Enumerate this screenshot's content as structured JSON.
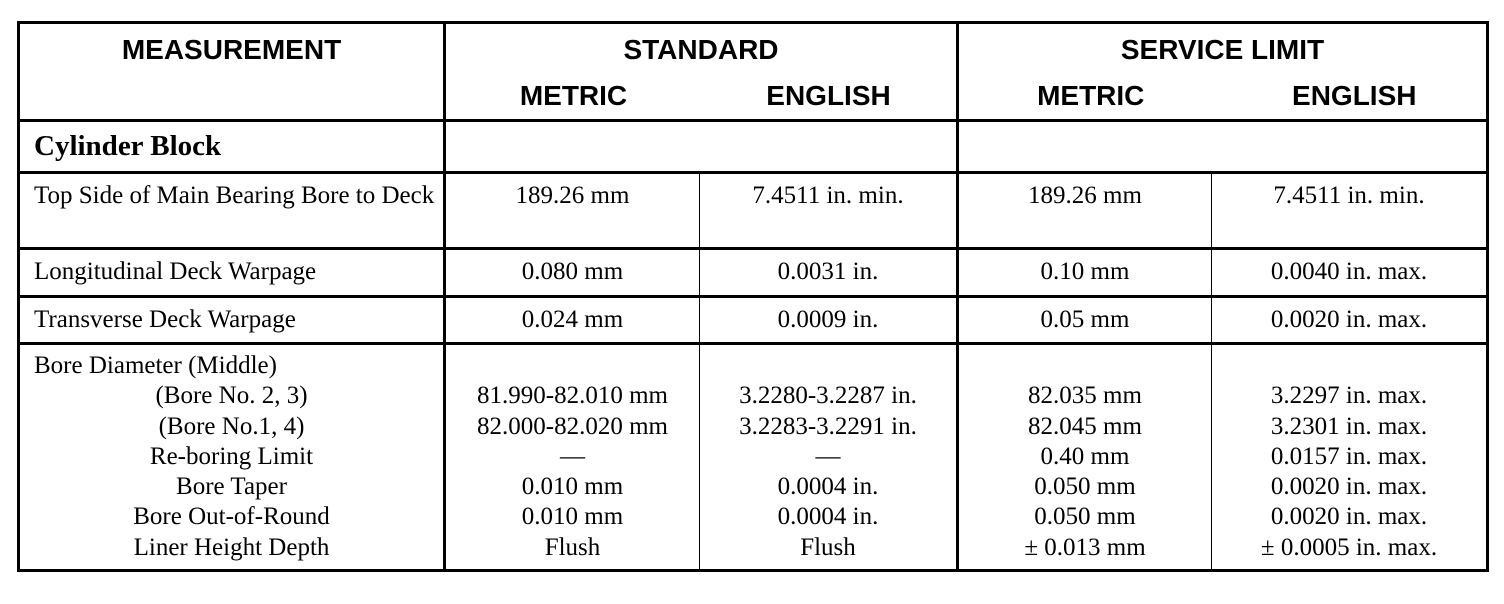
{
  "header": {
    "measurement": "MEASUREMENT",
    "standard": "STANDARD",
    "service_limit": "SERVICE LIMIT",
    "metric": "METRIC",
    "english": "ENGLISH"
  },
  "section": "Cylinder Block",
  "rows": [
    {
      "label": "Top Side of Main Bearing Bore to Deck",
      "std_metric": "189.26 mm",
      "std_english": "7.4511 in. min.",
      "svc_metric": "189.26 mm",
      "svc_english": "7.4511 in. min."
    },
    {
      "label": "Longitudinal Deck Warpage",
      "std_metric": "0.080 mm",
      "std_english": "0.0031 in.",
      "svc_metric": "0.10 mm",
      "svc_english": "0.0040 in. max."
    },
    {
      "label": "Transverse Deck Warpage",
      "std_metric": "0.024 mm",
      "std_english": "0.0009 in.",
      "svc_metric": "0.05 mm",
      "svc_english": "0.0020 in. max."
    }
  ],
  "bore": {
    "title": "Bore Diameter (Middle)",
    "items": [
      {
        "label": "(Bore No. 2, 3)",
        "std_metric": "81.990-82.010 mm",
        "std_english": "3.2280-3.2287 in.",
        "svc_metric": "82.035 mm",
        "svc_english": "3.2297 in. max."
      },
      {
        "label": "(Bore No.1,  4)",
        "std_metric": "82.000-82.020 mm",
        "std_english": "3.2283-3.2291 in.",
        "svc_metric": "82.045 mm",
        "svc_english": "3.2301 in. max."
      },
      {
        "label": "Re-boring Limit",
        "std_metric": "—",
        "std_english": "—",
        "svc_metric": "0.40 mm",
        "svc_english": "0.0157 in. max."
      },
      {
        "label": "Bore Taper",
        "std_metric": "0.010 mm",
        "std_english": "0.0004 in.",
        "svc_metric": "0.050 mm",
        "svc_english": "0.0020 in. max."
      },
      {
        "label": "Bore Out-of-Round",
        "std_metric": "0.010 mm",
        "std_english": "0.0004 in.",
        "svc_metric": "0.050 mm",
        "svc_english": "0.0020 in. max."
      },
      {
        "label": "Liner Height Depth",
        "std_metric": "Flush",
        "std_english": "Flush",
        "svc_metric": "± 0.013 mm",
        "svc_english": "± 0.0005 in. max."
      }
    ]
  }
}
